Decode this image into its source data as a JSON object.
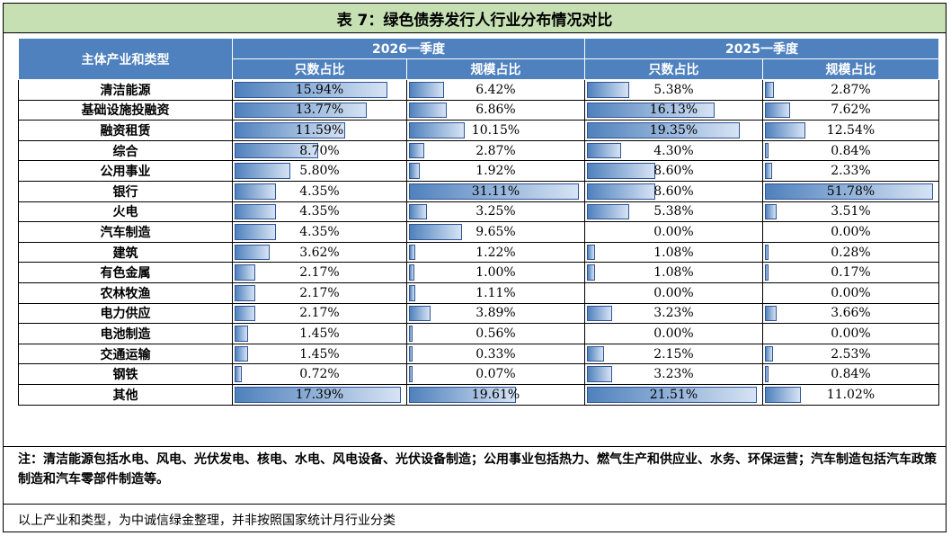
{
  "title": "表 7：绿色债券发行人行业分布情况对比",
  "header": {
    "category": "主体产业和类型",
    "periods": [
      "2026一季度",
      "2025一季度"
    ],
    "sub": [
      "只数占比",
      "规模占比",
      "只数占比",
      "规模占比"
    ]
  },
  "rows": [
    {
      "cat": "清洁能源",
      "v": [
        "15.94%",
        "6.42%",
        "5.38%",
        "2.87%"
      ]
    },
    {
      "cat": "基础设施投融资",
      "v": [
        "13.77%",
        "6.86%",
        "16.13%",
        "7.62%"
      ]
    },
    {
      "cat": "融资租赁",
      "v": [
        "11.59%",
        "10.15%",
        "19.35%",
        "12.54%"
      ]
    },
    {
      "cat": "综合",
      "v": [
        "8.70%",
        "2.87%",
        "4.30%",
        "0.84%"
      ]
    },
    {
      "cat": "公用事业",
      "v": [
        "5.80%",
        "1.92%",
        "8.60%",
        "2.33%"
      ]
    },
    {
      "cat": "银行",
      "v": [
        "4.35%",
        "31.11%",
        "8.60%",
        "51.78%"
      ]
    },
    {
      "cat": "火电",
      "v": [
        "4.35%",
        "3.25%",
        "5.38%",
        "3.51%"
      ]
    },
    {
      "cat": "汽车制造",
      "v": [
        "4.35%",
        "9.65%",
        "0.00%",
        "0.00%"
      ]
    },
    {
      "cat": "建筑",
      "v": [
        "3.62%",
        "1.22%",
        "1.08%",
        "0.28%"
      ]
    },
    {
      "cat": "有色金属",
      "v": [
        "2.17%",
        "1.00%",
        "1.08%",
        "0.17%"
      ]
    },
    {
      "cat": "农林牧渔",
      "v": [
        "2.17%",
        "1.11%",
        "0.00%",
        "0.00%"
      ]
    },
    {
      "cat": "电力供应",
      "v": [
        "2.17%",
        "3.89%",
        "3.23%",
        "3.66%"
      ]
    },
    {
      "cat": "电池制造",
      "v": [
        "1.45%",
        "0.56%",
        "0.00%",
        "0.00%"
      ]
    },
    {
      "cat": "交通运输",
      "v": [
        "1.45%",
        "0.33%",
        "2.15%",
        "2.53%"
      ]
    },
    {
      "cat": "钢铁",
      "v": [
        "0.72%",
        "0.07%",
        "3.23%",
        "0.84%"
      ]
    },
    {
      "cat": "其他",
      "v": [
        "17.39%",
        "19.61%",
        "21.51%",
        "11.02%"
      ]
    }
  ],
  "note": "注：清洁能源包括水电、风电、光伏发电、核电、水电、风电设备、光伏设备制造；公用事业包括热力、燃气生产和供应业、水务、环保运营；汽车制造包括汽车政策制造和汽车零部件制造等。",
  "source": "以上产业和类型，为中诚信绿金整理，并非按照国家统计月行业分类",
  "colors": {
    "title_bg": "#c6e0b4",
    "header_bg": "#4e81bd",
    "bar": "#4f81bd"
  }
}
